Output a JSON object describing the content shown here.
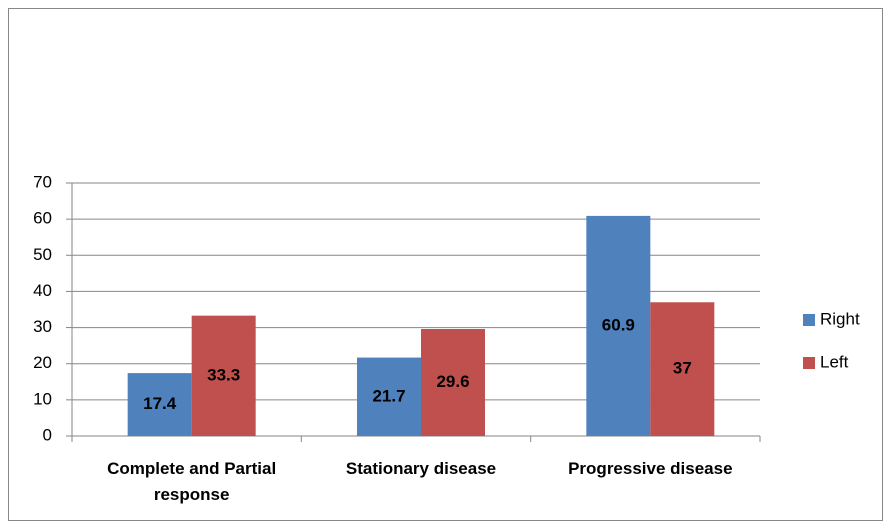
{
  "chart_data": {
    "type": "bar",
    "categories": [
      "Complete and Partial response",
      "Stationary disease",
      "Progressive disease"
    ],
    "series": [
      {
        "name": "Right",
        "color": "#4f81bd",
        "values": [
          17.4,
          21.7,
          60.9
        ]
      },
      {
        "name": "Left",
        "color": "#c0504d",
        "values": [
          33.3,
          29.6,
          37
        ]
      }
    ],
    "ylim": [
      0,
      70
    ],
    "yticks": [
      0,
      10,
      20,
      30,
      40,
      50,
      60,
      70
    ],
    "grid": true,
    "legend": "right"
  }
}
